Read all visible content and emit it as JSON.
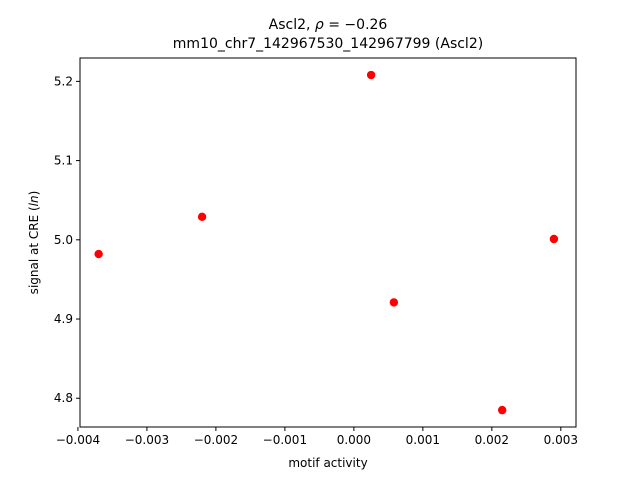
{
  "chart_data": {
    "type": "scatter",
    "title_prefix": "Ascl2, ",
    "title_rho_symbol": "ρ",
    "title_rho_value": " = −0.26",
    "subtitle": "mm10_chr7_142967530_142967799 (Ascl2)",
    "xlabel": "motif activity",
    "ylabel_prefix": "signal at CRE (",
    "ylabel_italic": "ln",
    "ylabel_suffix": ")",
    "xlim": [
      -0.00397,
      0.00322
    ],
    "ylim": [
      4.7637,
      5.2295
    ],
    "x_ticks": [
      -0.004,
      -0.003,
      -0.002,
      -0.001,
      0.0,
      0.001,
      0.002,
      0.003
    ],
    "x_tick_labels": [
      "−0.004",
      "−0.003",
      "−0.002",
      "−0.001",
      "0.000",
      "0.001",
      "0.002",
      "0.003"
    ],
    "y_ticks": [
      4.8,
      4.9,
      5.0,
      5.1,
      5.2
    ],
    "y_tick_labels": [
      "4.8",
      "4.9",
      "5.0",
      "5.1",
      "5.2"
    ],
    "grid": false,
    "marker_color": "#ff0000",
    "points": [
      {
        "x": -0.0037,
        "y": 4.982
      },
      {
        "x": -0.0022,
        "y": 5.029
      },
      {
        "x": 0.00025,
        "y": 5.208
      },
      {
        "x": 0.00058,
        "y": 4.921
      },
      {
        "x": 0.00215,
        "y": 4.785
      },
      {
        "x": 0.0029,
        "y": 5.001
      }
    ]
  }
}
